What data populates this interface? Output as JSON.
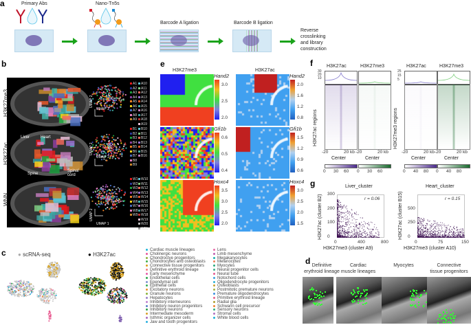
{
  "panel_labels": {
    "a": "a",
    "b": "b",
    "c": "c",
    "d": "d",
    "e": "e",
    "f": "f",
    "g": "g"
  },
  "panel_a": {
    "steps": [
      "Primary Abs",
      "Nano-Tn5s",
      "Barcode A ligation",
      "Barcode B ligation"
    ],
    "final_step": [
      "Reverse",
      "crosslinking",
      "and library",
      "construction"
    ]
  },
  "panel_b": {
    "rows": [
      "H3K27me3",
      "H3K27ac",
      "WNN"
    ],
    "annotations": [
      "Liver",
      "Heart",
      "Spine",
      "Spinal",
      "cord"
    ],
    "umap_x": "UMAP 1",
    "umap_y": "UMAP 2",
    "legend_a": [
      "A1",
      "A2",
      "A3",
      "A4",
      "A5",
      "A6",
      "A7",
      "A8",
      "A9",
      "A10",
      "A11",
      "A12",
      "A13",
      "A14",
      "A15",
      "A16",
      "A17",
      "A18",
      "A19"
    ],
    "legend_b": [
      "B1",
      "B2",
      "B3",
      "B4",
      "B5",
      "B6",
      "B7",
      "B8",
      "B9",
      "B10",
      "B11",
      "B12",
      "B13",
      "B14",
      "B15",
      "B16"
    ],
    "legend_w": [
      "W1",
      "W2",
      "W3",
      "W4",
      "W5",
      "W6",
      "W7",
      "W8",
      "W9",
      "W10",
      "W11",
      "W12",
      "W13",
      "W14",
      "W15",
      "W16",
      "W17",
      "W18",
      "W19",
      "W20",
      "W21"
    ],
    "cluster_colors": [
      "#e41a1c",
      "#2b3a9a",
      "#1b9e3e",
      "#8e3fa0",
      "#f07f22",
      "#f2d21b",
      "#4a6fbf",
      "#e47fbf",
      "#c9892b",
      "#5cc4d4",
      "#7fc97f",
      "#f0675d",
      "#9a6fd0",
      "#e8582a",
      "#42b4a8",
      "#c07ab8",
      "#3aa0a0",
      "#c03030",
      "#e8c0d8",
      "#bbbbbb",
      "#999999"
    ]
  },
  "panel_c": {
    "titles": [
      "scRNA-seq",
      "H3K27ac"
    ],
    "legend_col1": [
      {
        "label": "Cardiac muscle lineages",
        "color": "#1bb5d8"
      },
      {
        "label": "Cholinergic neurons",
        "color": "#e8569c"
      },
      {
        "label": "Chondroctye progenitors",
        "color": "#8bb33a"
      },
      {
        "label": "Chondrocytes and osteoblasts",
        "color": "#3fae49"
      },
      {
        "label": "Connective tissue progenitors",
        "color": "#d9a21b"
      },
      {
        "label": "Definitive erythroid lineage",
        "color": "#f07f7f"
      },
      {
        "label": "Early mesenchyme",
        "color": "#e85aa8"
      },
      {
        "label": "Endothelial cells",
        "color": "#2aa84a"
      },
      {
        "label": "Ependymal cell",
        "color": "#7f8fd0"
      },
      {
        "label": "Epithelial cells",
        "color": "#3ab05a"
      },
      {
        "label": "Excitatory neurons",
        "color": "#e8902a"
      },
      {
        "label": "Granule neurons",
        "color": "#8ab43a"
      },
      {
        "label": "Hepatocytes",
        "color": "#9a80c8"
      },
      {
        "label": "Inhibitory interneurons",
        "color": "#c080d0"
      },
      {
        "label": "Inhibitory neuron progenitors",
        "color": "#5a80c8"
      },
      {
        "label": "Inhibitory neurons",
        "color": "#2aa04a"
      },
      {
        "label": "Intermediate mesoderm",
        "color": "#d8a02a"
      },
      {
        "label": "Isthmic organizer cells",
        "color": "#a86ac0"
      },
      {
        "label": "Jaw and tooth progenitors",
        "color": "#2ab0e0"
      }
    ],
    "legend_col2": [
      {
        "label": "Lens",
        "color": "#e86aa8"
      },
      {
        "label": "Limb mesenchyme",
        "color": "#c060b0"
      },
      {
        "label": "Megakaryocytes",
        "color": "#1ab0b0"
      },
      {
        "label": "Melanocytes",
        "color": "#f07f5a"
      },
      {
        "label": "Myocytes",
        "color": "#2aa87a"
      },
      {
        "label": "Neural progenitor cells",
        "color": "#3ab08a"
      },
      {
        "label": "Neural tube",
        "color": "#e85a90"
      },
      {
        "label": "Notochord cells",
        "color": "#3aa0e0"
      },
      {
        "label": "Oligodendrocyte progenitors",
        "color": "#2ab0d8"
      },
      {
        "label": "Osteoblasts",
        "color": "#c8a030"
      },
      {
        "label": "Postmitotic premature neurons",
        "color": "#a0b040"
      },
      {
        "label": "Premature oligodendrocytes",
        "color": "#3a90e0"
      },
      {
        "label": "Primitive erythroid lineage",
        "color": "#e8608a"
      },
      {
        "label": "Radial glia",
        "color": "#b0a030"
      },
      {
        "label": "Schwann cell precursor",
        "color": "#f08030"
      },
      {
        "label": "Sensory neurons",
        "color": "#2ab07a"
      },
      {
        "label": "Stromal cells",
        "color": "#b070c0"
      },
      {
        "label": "White blood cells",
        "color": "#1ab0d8"
      }
    ]
  },
  "panel_d": {
    "titles": [
      [
        "Definitive",
        "erythroid lineage"
      ],
      [
        "Cardiac",
        "muscle lineages"
      ],
      [
        "",
        "Myocytes"
      ],
      [
        "Connective",
        "tissue progenitors"
      ]
    ]
  },
  "panel_e": {
    "columns": [
      "H3K27me3",
      "H3K27ac"
    ],
    "genes": [
      "Hand2",
      "Gfi1b",
      "Hoxc4"
    ],
    "me3_ticks": [
      [
        "3.0",
        "2.5",
        "2.0"
      ],
      [
        "0.6",
        "0.5",
        "0.4"
      ],
      [
        "3.5",
        "3.0",
        "2.5",
        "2.0"
      ]
    ],
    "ac_ticks": [
      [
        "2.0",
        "1.6",
        "1.2",
        "0.8"
      ],
      [
        "1.5",
        "1.2",
        "0.9",
        "0.6"
      ],
      [
        "3.0",
        "2.5",
        "2.0",
        "1.5"
      ]
    ]
  },
  "panel_f": {
    "headers": [
      "H3K27ac",
      "H3K27me3",
      "H3K27ac",
      "H3K27me3"
    ],
    "row_labels": [
      "H3K27ac regions",
      "H3K27me3 regions"
    ],
    "profile_ticks_left": [
      "30",
      "20",
      "10"
    ],
    "profile_ticks_right": [
      "25",
      "15",
      "5"
    ],
    "x_ticks": [
      [
        "-20",
        "20 kb"
      ],
      [
        "-20",
        "20 kb"
      ],
      [
        "-20",
        "20 kb"
      ],
      [
        "-20",
        "20 kb"
      ]
    ],
    "x_label": "Center",
    "cbar_ticks": [
      [
        "0",
        "30",
        "60"
      ],
      [
        "0",
        "30",
        "60"
      ],
      [
        "0",
        "40",
        "80"
      ],
      [
        "0",
        "40",
        "80"
      ]
    ],
    "colors": {
      "ac": "#4b2a8c",
      "me3": "#1a6b2e"
    }
  },
  "chart_data": [
    {
      "type": "scatter",
      "title": "Liver_cluster",
      "xlabel": "H3K27me3 (cluster A9)",
      "ylabel": "H3K27ac (cluster B2)",
      "xlim": [
        0,
        800
      ],
      "ylim": [
        0,
        300
      ],
      "x_ticks": [
        "0",
        "400",
        "800"
      ],
      "y_ticks": [
        "300",
        "200",
        "100",
        "0"
      ],
      "annotation": "r = 0.06",
      "color": "#3d1152"
    },
    {
      "type": "scatter",
      "title": "Heart_cluster",
      "xlabel": "H3K27me3 (cluster A10)",
      "ylabel": "H3K27ac (cluster B15)",
      "xlim": [
        0,
        150
      ],
      "ylim": [
        0,
        750
      ],
      "x_ticks": [
        "0",
        "75",
        "150"
      ],
      "y_ticks": [
        "500",
        "250",
        "0"
      ],
      "annotation": "r = 0.15",
      "color": "#3d1152"
    }
  ]
}
